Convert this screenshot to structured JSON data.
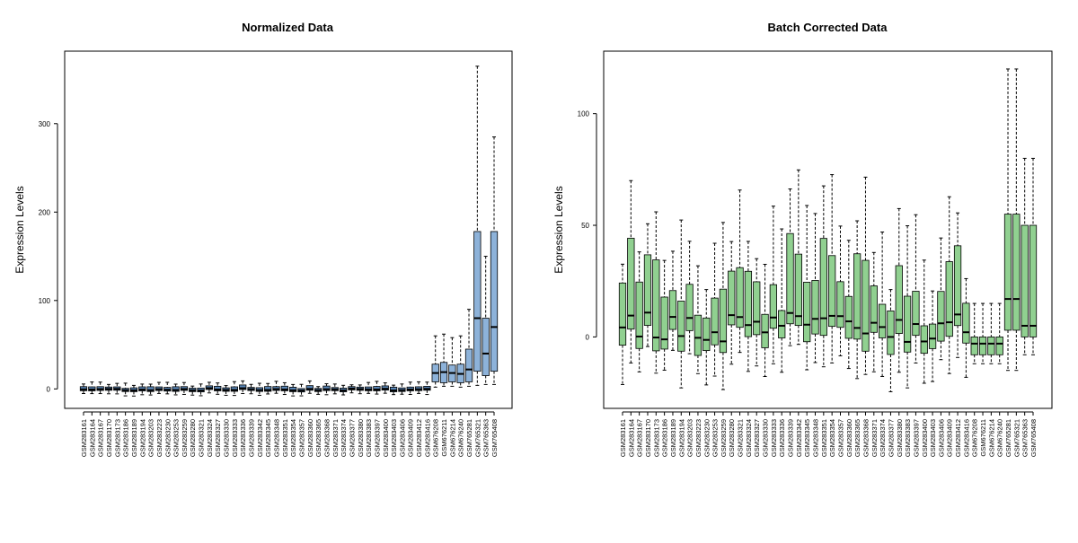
{
  "chart_data": [
    {
      "type": "boxplot",
      "title": "Normalized Data",
      "ylabel": "Expression Levels",
      "xlabel": "",
      "ylim": [
        -22,
        382
      ],
      "yticks": [
        0,
        100,
        200,
        300
      ],
      "grid": false,
      "colors": {
        "batch1": "#5a87b8",
        "batch2": "#8db2d9",
        "median": "#000000",
        "whisker": "#000000"
      },
      "categories": [
        "GSM283161",
        "GSM283164",
        "GSM283167",
        "GSM283170",
        "GSM283173",
        "GSM283186",
        "GSM283189",
        "GSM283194",
        "GSM283203",
        "GSM283223",
        "GSM283230",
        "GSM283253",
        "GSM283259",
        "GSM283280",
        "GSM283321",
        "GSM283324",
        "GSM283327",
        "GSM283330",
        "GSM283333",
        "GSM283336",
        "GSM283339",
        "GSM283342",
        "GSM283345",
        "GSM283348",
        "GSM283351",
        "GSM283354",
        "GSM283357",
        "GSM283360",
        "GSM283365",
        "GSM283368",
        "GSM283371",
        "GSM283374",
        "GSM283377",
        "GSM283380",
        "GSM283383",
        "GSM283397",
        "GSM283400",
        "GSM283403",
        "GSM283406",
        "GSM283409",
        "GSM283412",
        "GSM283416",
        "GSM676208",
        "GSM676211",
        "GSM676214",
        "GSM676240",
        "GSM765281",
        "GSM765321",
        "GSM765363",
        "GSM765408"
      ],
      "batch2_start_index": 42,
      "tick_label_every": 1
    },
    {
      "type": "boxplot",
      "title": "Batch Corrected Data",
      "ylabel": "Expression Levels",
      "xlabel": "",
      "ylim": [
        -32,
        128
      ],
      "yticks": [
        0,
        50,
        100
      ],
      "grid": false,
      "colors": {
        "batch1": "#90d090",
        "batch2": "#90d090",
        "median": "#000000",
        "whisker": "#000000"
      },
      "categories": [
        "GSM283161",
        "GSM283164",
        "GSM283167",
        "GSM283170",
        "GSM283173",
        "GSM283186",
        "GSM283189",
        "GSM283194",
        "GSM283203",
        "GSM283223",
        "GSM283230",
        "GSM283253",
        "GSM283259",
        "GSM283280",
        "GSM283321",
        "GSM283324",
        "GSM283327",
        "GSM283330",
        "GSM283333",
        "GSM283336",
        "GSM283339",
        "GSM283342",
        "GSM283345",
        "GSM283348",
        "GSM283351",
        "GSM283354",
        "GSM283357",
        "GSM283360",
        "GSM283365",
        "GSM283368",
        "GSM283371",
        "GSM283374",
        "GSM283377",
        "GSM283380",
        "GSM283383",
        "GSM283397",
        "GSM283400",
        "GSM283403",
        "GSM283406",
        "GSM283409",
        "GSM283412",
        "GSM283416",
        "GSM676208",
        "GSM676211",
        "GSM676214",
        "GSM676240",
        "GSM765281",
        "GSM765321",
        "GSM765363",
        "GSM765408"
      ],
      "batch2_start_index": 42,
      "tick_label_every": 1
    }
  ]
}
